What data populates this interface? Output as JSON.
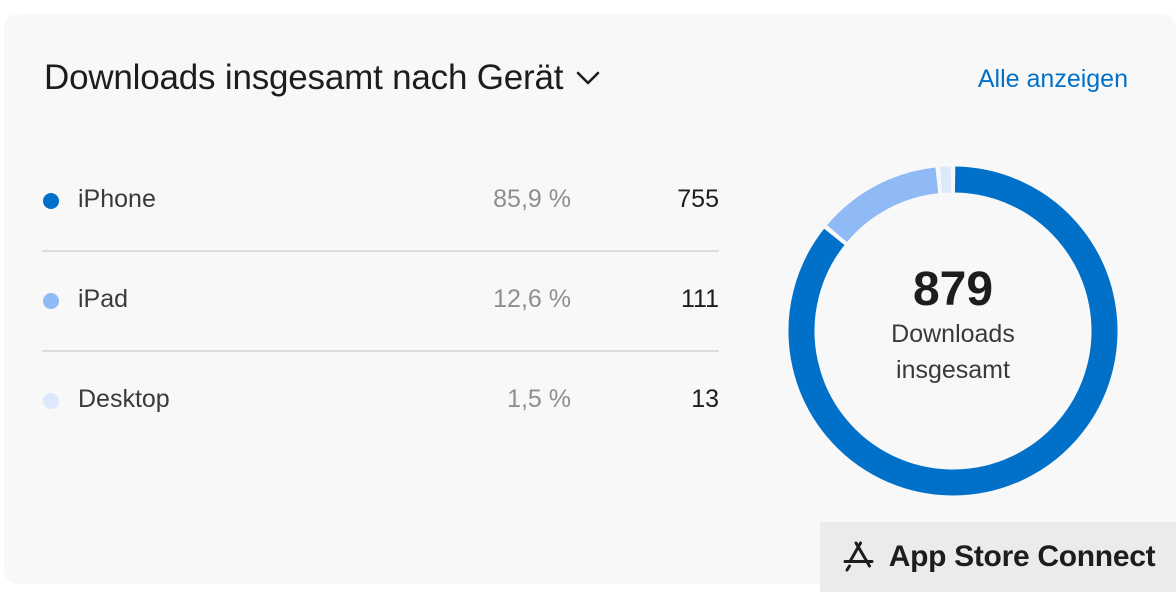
{
  "card": {
    "title": "Downloads insgesamt nach Gerät",
    "show_all_label": "Alle anzeigen"
  },
  "devices": [
    {
      "label": "iPhone",
      "percent": "85,9 %",
      "count": "755",
      "color": "#0070c9"
    },
    {
      "label": "iPad",
      "percent": "12,6 %",
      "count": "111",
      "color": "#8fbaf5"
    },
    {
      "label": "Desktop",
      "percent": "1,5 %",
      "count": "13",
      "color": "#dce8fb"
    }
  ],
  "chart_data": {
    "type": "pie",
    "categories": [
      "iPhone",
      "iPad",
      "Desktop"
    ],
    "values": [
      755,
      111,
      13
    ],
    "colors": [
      "#0070c9",
      "#8fbaf5",
      "#dce8fb"
    ],
    "center_value": "879",
    "center_label": "Downloads insgesamt"
  },
  "brand": {
    "icon": "app-store-icon",
    "text": "App Store Connect"
  }
}
